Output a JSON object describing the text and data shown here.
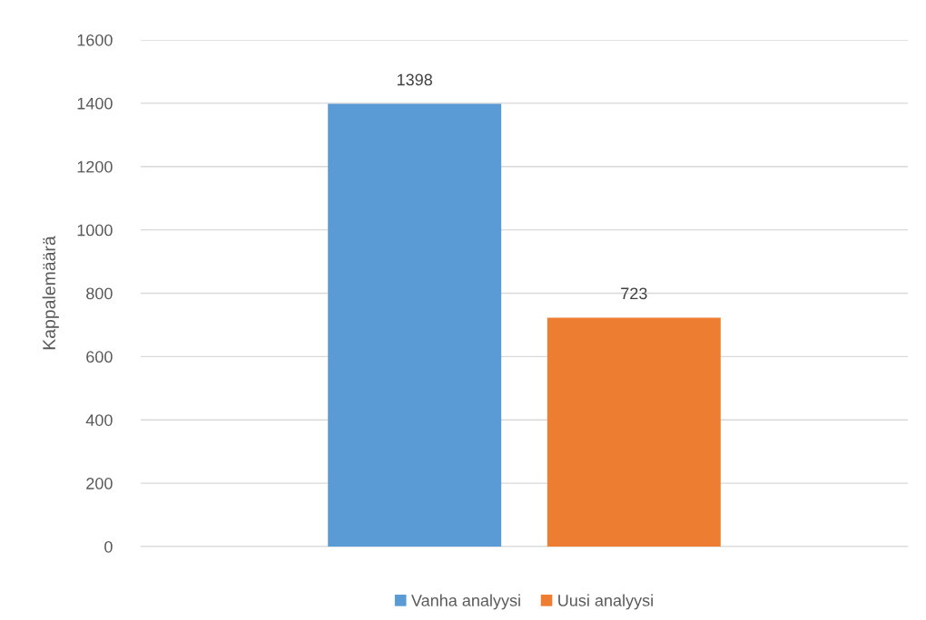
{
  "chart_data": {
    "type": "bar",
    "ylabel": "Kappalemäärä",
    "categories": [
      null
    ],
    "series": [
      {
        "name": "Vanha analyysi",
        "color": "#5b9bd5",
        "values": [
          1398
        ]
      },
      {
        "name": "Uusi analyysi",
        "color": "#ed7d31",
        "values": [
          723
        ]
      }
    ],
    "ylim": [
      0,
      1600
    ],
    "yticks": [
      0,
      200,
      400,
      600,
      800,
      1000,
      1200,
      1400,
      1600
    ],
    "grid": "y",
    "legend": "bottom",
    "data_labels": true
  }
}
